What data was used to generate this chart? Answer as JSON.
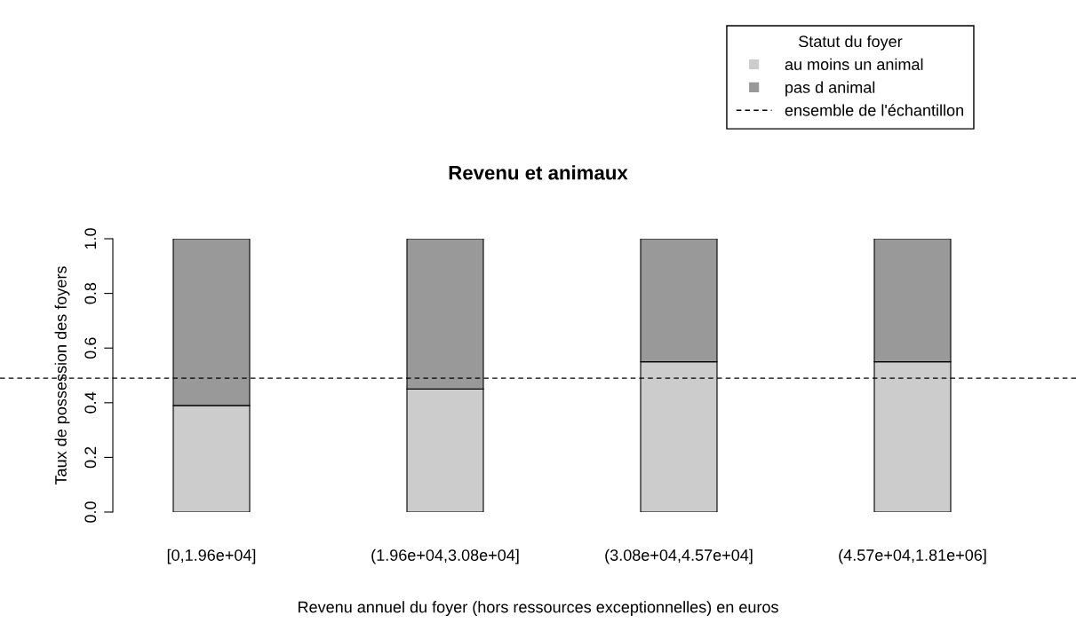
{
  "chart_data": {
    "type": "bar",
    "stacked": true,
    "title": "Revenu et animaux",
    "xlabel": "Revenu annuel du foyer (hors ressources exceptionnelles) en euros",
    "ylabel": "Taux de possession des foyers",
    "categories": [
      "[0,1.96e+04]",
      "(1.96e+04,3.08e+04]",
      "(3.08e+04,4.57e+04]",
      "(4.57e+04,1.81e+06]"
    ],
    "series": [
      {
        "name": "au moins un animal",
        "color": "#cccccc",
        "values": [
          0.39,
          0.45,
          0.55,
          0.55
        ]
      },
      {
        "name": "pas d animal",
        "color": "#999999",
        "values": [
          0.61,
          0.55,
          0.45,
          0.45
        ]
      }
    ],
    "ylim": [
      0,
      1
    ],
    "yticks": [
      {
        "value": 0,
        "label": "0.0"
      },
      {
        "value": 0.2,
        "label": "0.2"
      },
      {
        "value": 0.4,
        "label": "0.4"
      },
      {
        "value": 0.6,
        "label": "0.6"
      },
      {
        "value": 0.8,
        "label": "0.8"
      },
      {
        "value": 1,
        "label": "1.0"
      }
    ],
    "ref_lines": [
      {
        "axis": "y",
        "value": 0.49,
        "label": "ensemble de l'échantillon",
        "color": "#000000",
        "line_style": "dashed"
      }
    ],
    "legend": "top right",
    "legend_title": "Statut du foyer",
    "grid": false
  }
}
